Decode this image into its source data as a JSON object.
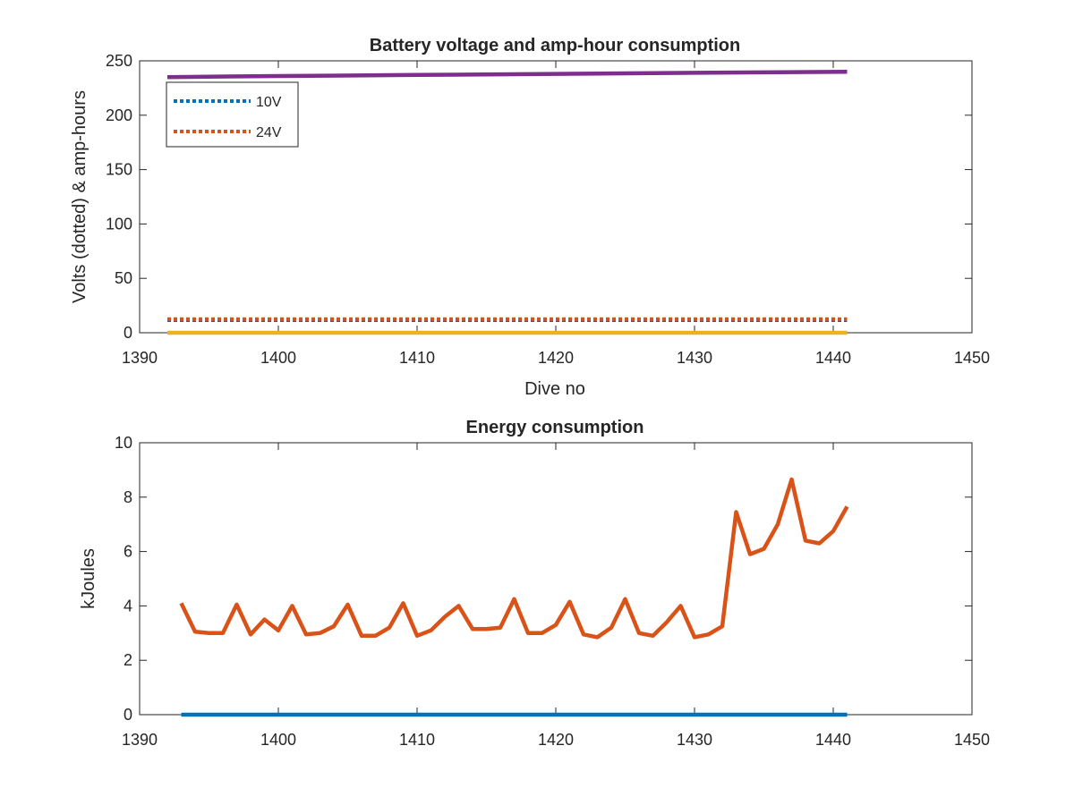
{
  "figure": {
    "charts": [
      {
        "title": "Battery voltage and amp-hour consumption",
        "xlabel": "Dive no",
        "ylabel": "Volts (dotted) & amp-hours",
        "legend_position": "top-left"
      },
      {
        "title": "Energy consumption",
        "xlabel": "",
        "ylabel": "kJoules"
      }
    ]
  },
  "chart_data": [
    {
      "type": "line",
      "title": "Battery voltage and amp-hour consumption",
      "xlabel": "Dive no",
      "ylabel": "Volts (dotted) & amp-hours",
      "xlim": [
        1390,
        1450
      ],
      "ylim": [
        0,
        250
      ],
      "xticks": [
        1390,
        1400,
        1410,
        1420,
        1430,
        1440,
        1450
      ],
      "yticks": [
        0,
        50,
        100,
        150,
        200,
        250
      ],
      "grid": false,
      "legend": {
        "position": "top-left",
        "entries": [
          "10V",
          "24V"
        ]
      },
      "series": [
        {
          "name": "10V",
          "style": "dotted",
          "color": "#0072BD",
          "x": [
            1392,
            1441
          ],
          "y": [
            11.5,
            11.5
          ]
        },
        {
          "name": "24V",
          "style": "dotted",
          "color": "#D95319",
          "x": [
            1392,
            1441
          ],
          "y": [
            12.5,
            12.5
          ]
        },
        {
          "style": "solid",
          "color": "#7E2F8E",
          "x": [
            1392,
            1400,
            1410,
            1420,
            1430,
            1441
          ],
          "y": [
            235,
            236,
            237,
            238,
            239,
            240
          ]
        },
        {
          "style": "solid",
          "color": "#EDB120",
          "x": [
            1392,
            1441
          ],
          "y": [
            0,
            0
          ]
        }
      ]
    },
    {
      "type": "line",
      "title": "Energy consumption",
      "xlabel": "",
      "ylabel": "kJoules",
      "xlim": [
        1390,
        1450
      ],
      "ylim": [
        0,
        10
      ],
      "xticks": [
        1390,
        1400,
        1410,
        1420,
        1430,
        1440,
        1450
      ],
      "yticks": [
        0,
        2,
        4,
        6,
        8,
        10
      ],
      "grid": false,
      "series": [
        {
          "style": "solid",
          "color": "#0072BD",
          "x": [
            1393,
            1441
          ],
          "y": [
            0,
            0
          ]
        },
        {
          "style": "solid",
          "color": "#D95319",
          "x": [
            1393,
            1394,
            1395,
            1396,
            1397,
            1398,
            1399,
            1400,
            1401,
            1402,
            1403,
            1404,
            1405,
            1406,
            1407,
            1408,
            1409,
            1410,
            1411,
            1412,
            1413,
            1414,
            1415,
            1416,
            1417,
            1418,
            1419,
            1420,
            1421,
            1422,
            1423,
            1424,
            1425,
            1426,
            1427,
            1428,
            1429,
            1430,
            1431,
            1432,
            1433,
            1434,
            1435,
            1436,
            1437,
            1438,
            1439,
            1440,
            1441
          ],
          "y": [
            4.1,
            3.05,
            3.0,
            3.0,
            4.05,
            2.95,
            3.5,
            3.1,
            4.0,
            2.95,
            3.0,
            3.25,
            4.05,
            2.9,
            2.9,
            3.2,
            4.1,
            2.9,
            3.1,
            3.6,
            4.0,
            3.15,
            3.15,
            3.2,
            4.25,
            3.0,
            3.0,
            3.3,
            4.15,
            2.95,
            2.85,
            3.2,
            4.25,
            3.0,
            2.9,
            3.4,
            4.0,
            2.85,
            2.95,
            3.25,
            7.45,
            5.9,
            6.1,
            7.0,
            8.65,
            6.4,
            6.3,
            6.75,
            7.65
          ]
        }
      ]
    }
  ]
}
